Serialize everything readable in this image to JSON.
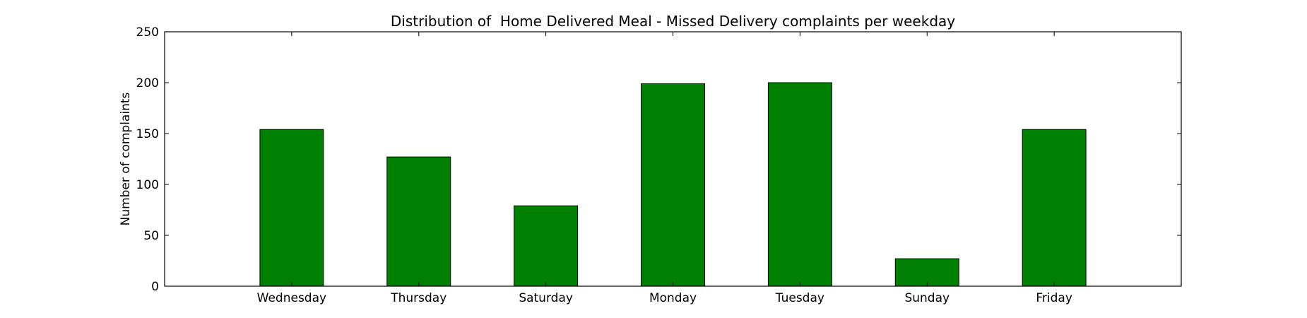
{
  "chart_data": {
    "type": "bar",
    "title": "Distribution of  Home Delivered Meal - Missed Delivery complaints per weekday",
    "xlabel": "",
    "ylabel": "Number of complaints",
    "categories": [
      "Wednesday",
      "Thursday",
      "Saturday",
      "Monday",
      "Tuesday",
      "Sunday",
      "Friday"
    ],
    "values": [
      154,
      127,
      79,
      199,
      200,
      27,
      154
    ],
    "ylim": [
      0,
      250
    ],
    "yticks": [
      0,
      50,
      100,
      150,
      200,
      250
    ],
    "xlim": [
      -1,
      7
    ],
    "bar_color": "#008000",
    "bar_edge_color": "#000000",
    "grid": false,
    "legend": null
  }
}
